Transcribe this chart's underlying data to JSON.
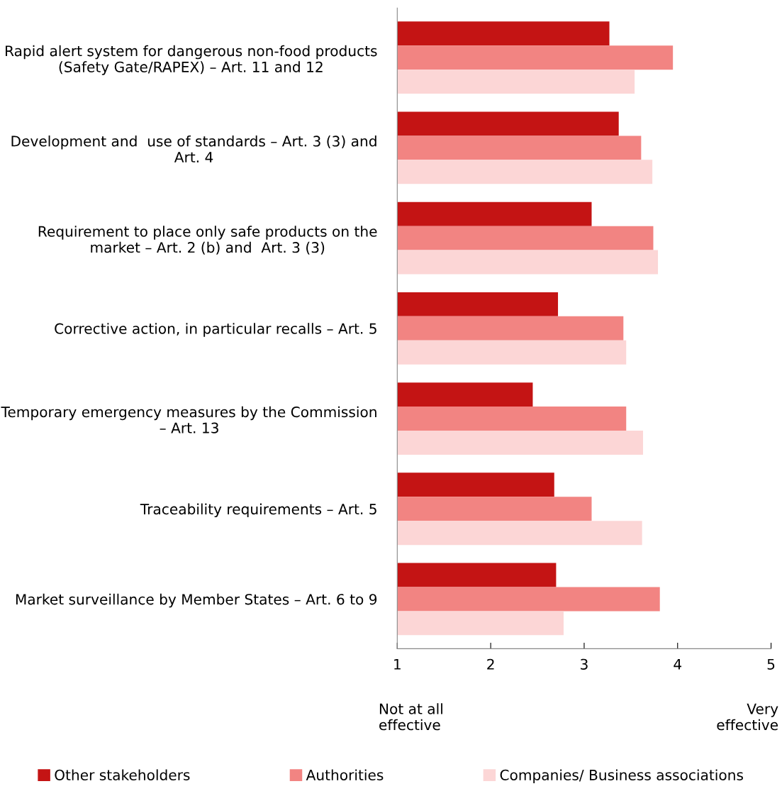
{
  "chart_data": {
    "type": "bar",
    "orientation": "horizontal",
    "categories": [
      "Rapid alert system for dangerous non-food products\n(Safety Gate/RAPEX) – Art. 11 and 12",
      "Development and  use of standards – Art. 3 (3) and\nArt. 4",
      "Requirement to place only safe products on the\nmarket – Art. 2 (b) and  Art. 3 (3)",
      "Corrective action, in particular recalls – Art. 5",
      "Temporary emergency measures by the Commission\n– Art. 13",
      "Traceability requirements – Art. 5",
      "Market surveillance by Member States – Art. 6 to 9"
    ],
    "series": [
      {
        "name": "Other stakeholders",
        "color": "#c41414",
        "values": [
          3.27,
          3.37,
          3.08,
          2.72,
          2.45,
          2.68,
          2.7
        ]
      },
      {
        "name": "Authorities",
        "color": "#f28482",
        "values": [
          3.95,
          3.61,
          3.74,
          3.42,
          3.45,
          3.08,
          3.81
        ]
      },
      {
        "name": "Companies/ Business associations",
        "color": "#fcd6d6",
        "values": [
          3.54,
          3.73,
          3.79,
          3.45,
          3.63,
          3.62,
          2.78
        ]
      }
    ],
    "xlim": [
      1,
      5
    ],
    "xticks": [
      1,
      2,
      3,
      4,
      5
    ],
    "grid": false,
    "legend": "bottom",
    "annotations": [
      "Not at all\neffective",
      "Very\neffective"
    ]
  }
}
